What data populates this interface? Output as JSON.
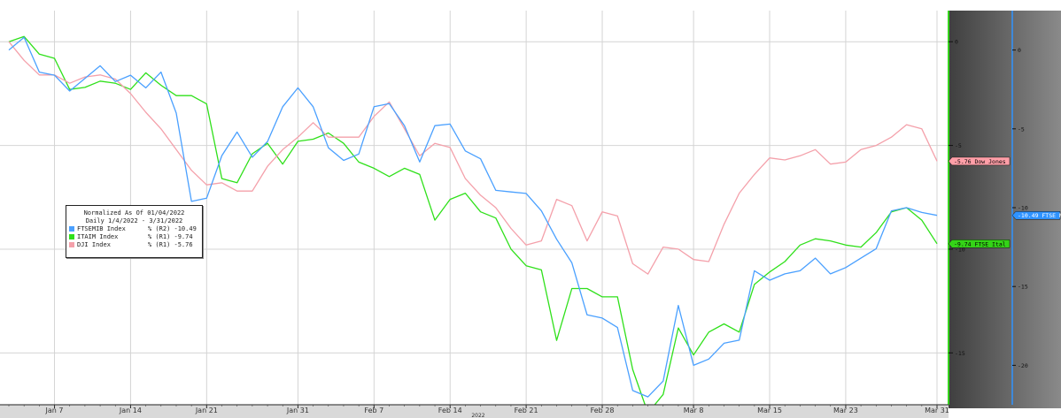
{
  "chart_data": {
    "type": "line",
    "legend": {
      "line1": "Normalized As Of 01/04/2022",
      "line2": "Daily 1/4/2022 - 3/31/2022",
      "entries": [
        {
          "name": "FTSEMIB Index",
          "value": "% (R2) -10.49",
          "color": "#4aa0ff"
        },
        {
          "name": "ITAIM Index",
          "value": "% (R1) -9.74",
          "color": "#2fe01a"
        },
        {
          "name": "DJI Index",
          "value": "% (R1) -5.76",
          "color": "#f4a0aa"
        }
      ]
    },
    "x_axis": {
      "ticks": [
        "Jan 7",
        "Jan 14",
        "Jan 21",
        "Jan 31",
        "Feb 7",
        "Feb 14",
        "Feb 21",
        "Feb 28",
        "Mar 8",
        "Mar 15",
        "Mar 23",
        "Mar 31"
      ],
      "year": "2022"
    },
    "y_axis_r1": {
      "ticks": [
        "0",
        "-5",
        "-10",
        "-15"
      ],
      "range": [
        -17.5,
        1.5
      ]
    },
    "y_axis_r2": {
      "ticks": [
        "0",
        "-5",
        "-10",
        "-15",
        "-20"
      ],
      "range": [
        -22.5,
        2.5
      ]
    },
    "x_count": 62,
    "series": [
      {
        "name": "FTSEMIB Index",
        "axis": "R2",
        "color": "#4aa0ff",
        "values": [
          0,
          0.8,
          -1.4,
          -1.6,
          -2.6,
          -1.8,
          -1.0,
          -2.0,
          -1.6,
          -2.4,
          -1.4,
          -4.0,
          -9.6,
          -9.4,
          -6.7,
          -5.2,
          -6.8,
          -5.8,
          -3.6,
          -2.4,
          -3.6,
          -6.2,
          -7.0,
          -6.6,
          -3.6,
          -3.4,
          -4.8,
          -7.1,
          -4.8,
          -4.7,
          -6.4,
          -6.9,
          -8.9,
          -9.0,
          -9.1,
          -10.2,
          -12.0,
          -13.5,
          -16.8,
          -17.0,
          -17.6,
          -21.6,
          -22.0,
          -21.0,
          -16.2,
          -20.0,
          -19.6,
          -18.6,
          -18.4,
          -14.0,
          -14.6,
          -14.2,
          -14.0,
          -13.2,
          -14.2,
          -13.8,
          -13.2,
          -12.6,
          -10.2,
          -10.0,
          -10.3,
          -10.49
        ]
      },
      {
        "name": "ITAIM Index",
        "axis": "R1",
        "color": "#2fe01a",
        "values": [
          0,
          0.25,
          -0.6,
          -0.8,
          -2.3,
          -2.2,
          -1.9,
          -2.0,
          -2.3,
          -1.5,
          -2.1,
          -2.6,
          -2.6,
          -3.0,
          -6.6,
          -6.8,
          -5.4,
          -4.9,
          -5.9,
          -4.8,
          -4.7,
          -4.4,
          -4.9,
          -5.8,
          -6.1,
          -6.5,
          -6.1,
          -6.4,
          -8.6,
          -7.6,
          -7.3,
          -8.2,
          -8.5,
          -10.0,
          -10.8,
          -11.0,
          -14.4,
          -11.9,
          -11.9,
          -12.3,
          -12.3,
          -15.8,
          -17.9,
          -17.0,
          -13.8,
          -15.1,
          -14.0,
          -13.6,
          -14.0,
          -11.7,
          -11.1,
          -10.6,
          -9.8,
          -9.5,
          -9.6,
          -9.8,
          -9.9,
          -9.2,
          -8.2,
          -8.0,
          -8.6,
          -9.74
        ]
      },
      {
        "name": "DJI Index",
        "axis": "R1",
        "color": "#f4a0aa",
        "values": [
          0,
          -0.9,
          -1.6,
          -1.6,
          -2.0,
          -1.7,
          -1.6,
          -1.8,
          -2.5,
          -3.4,
          -4.2,
          -5.2,
          -6.2,
          -6.9,
          -6.8,
          -7.2,
          -7.2,
          -6.0,
          -5.2,
          -4.6,
          -3.9,
          -4.6,
          -4.6,
          -4.6,
          -3.6,
          -2.9,
          -4.2,
          -5.5,
          -4.9,
          -5.1,
          -6.6,
          -7.4,
          -8.0,
          -9.0,
          -9.8,
          -9.6,
          -7.6,
          -7.9,
          -9.6,
          -8.2,
          -8.4,
          -10.7,
          -11.2,
          -9.9,
          -10.0,
          -10.5,
          -10.6,
          -8.8,
          -7.3,
          -6.4,
          -5.6,
          -5.7,
          -5.5,
          -5.2,
          -5.9,
          -5.8,
          -5.2,
          -5.0,
          -4.6,
          -4.0,
          -4.2,
          -5.76
        ]
      }
    ],
    "right_labels": [
      {
        "text": "-5.76 Dow Jones",
        "value": -5.76,
        "axis": "R1",
        "bg": "#ff9fa8",
        "fg": "#000000"
      },
      {
        "text": "-9.74 FTSE Ital",
        "value": -9.74,
        "axis": "R1",
        "bg": "#34d317",
        "fg": "#000000"
      },
      {
        "text": "-10.49 FTSE M",
        "value": -10.49,
        "axis": "R2",
        "bg": "#2f93ff",
        "fg": "#ffffff"
      }
    ]
  }
}
